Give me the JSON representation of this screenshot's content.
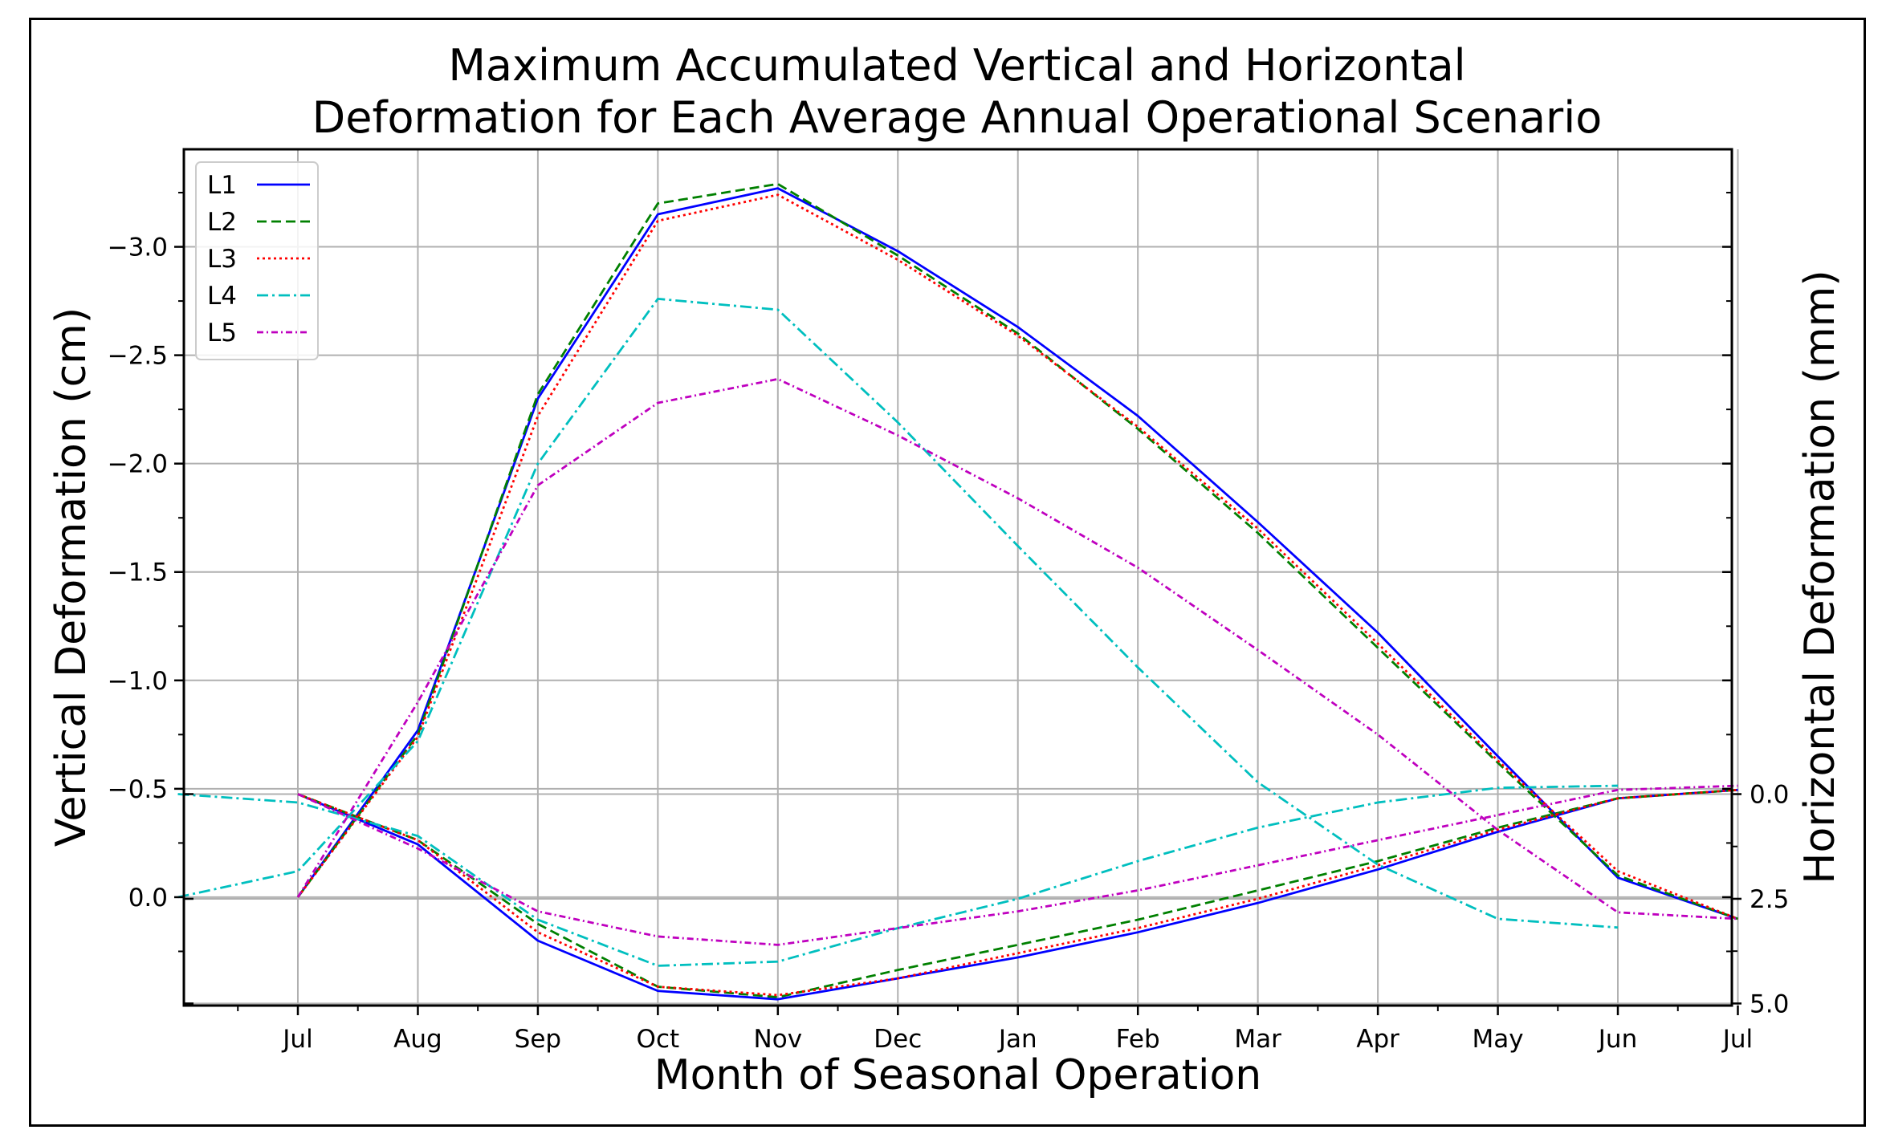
{
  "chart_data": {
    "type": "line",
    "title_lines": [
      "Maximum Accumulated Vertical and Horizontal",
      "Deformation for Each Average Annual Operational Scenario"
    ],
    "xlabel": "Month of Seasonal Operation",
    "ylabel_left": "Vertical Deformation (cm)",
    "ylabel_right": "Horizontal Deformation (mm)",
    "x_ticks": [
      {
        "x": 1,
        "label": "Jul"
      },
      {
        "x": 2,
        "label": "Aug"
      },
      {
        "x": 3,
        "label": "Sep"
      },
      {
        "x": 4,
        "label": "Oct"
      },
      {
        "x": 5,
        "label": "Nov"
      },
      {
        "x": 6,
        "label": "Dec"
      },
      {
        "x": 7,
        "label": "Jan"
      },
      {
        "x": 8,
        "label": "Feb"
      },
      {
        "x": 9,
        "label": "Mar"
      },
      {
        "x": 10,
        "label": "Apr"
      },
      {
        "x": 11,
        "label": "May"
      },
      {
        "x": 12,
        "label": "Jun"
      },
      {
        "x": 13,
        "label": "Jul"
      }
    ],
    "xlim": [
      0.05,
      12.95
    ],
    "vertical_axis": {
      "ylim": [
        0.5,
        -3.45
      ],
      "ticks": [
        {
          "v": -3.0,
          "label": "−3.0"
        },
        {
          "v": -2.5,
          "label": "−2.5"
        },
        {
          "v": -2.0,
          "label": "−2.0"
        },
        {
          "v": -1.5,
          "label": "−1.5"
        },
        {
          "v": -1.0,
          "label": "−1.0"
        },
        {
          "v": -0.5,
          "label": "−0.5"
        },
        {
          "v": 0.0,
          "label": "0.0"
        }
      ]
    },
    "horizontal_axis": {
      "ylim": [
        -15.4,
        5.05
      ],
      "ticks": [
        {
          "v": 0.0,
          "label": "0.0"
        },
        {
          "v": 2.5,
          "label": "2.5"
        },
        {
          "v": 5.0,
          "label": "5.0"
        }
      ]
    },
    "legend_position": "top-left",
    "series": [
      {
        "name": "L1",
        "color": "#0000ff",
        "dash": "",
        "vertical": {
          "x": [
            1,
            2,
            3,
            4,
            5,
            6,
            7,
            8,
            9,
            10,
            11,
            12,
            13
          ],
          "y": [
            0.0,
            -0.77,
            -2.3,
            -3.15,
            -3.27,
            -2.98,
            -2.63,
            -2.22,
            -1.73,
            -1.22,
            -0.65,
            -0.09,
            0.1
          ]
        },
        "horizontal": {
          "x": [
            1,
            2,
            3,
            4,
            5,
            6,
            7,
            8,
            9,
            10,
            11,
            12,
            13
          ],
          "y": [
            0.0,
            1.2,
            3.5,
            4.7,
            4.9,
            4.4,
            3.9,
            3.3,
            2.6,
            1.8,
            0.9,
            0.1,
            -0.1
          ]
        }
      },
      {
        "name": "L2",
        "color": "#008000",
        "dash": "12,6",
        "vertical": {
          "x": [
            1,
            2,
            3,
            4,
            5,
            6,
            7,
            8,
            9,
            10,
            11,
            12,
            13
          ],
          "y": [
            0.0,
            -0.75,
            -2.32,
            -3.2,
            -3.29,
            -2.96,
            -2.6,
            -2.16,
            -1.68,
            -1.15,
            -0.62,
            -0.1,
            0.1
          ]
        },
        "horizontal": {
          "x": [
            1,
            2,
            3,
            4,
            5,
            6,
            7,
            8,
            9,
            10,
            11,
            12,
            13
          ],
          "y": [
            0.0,
            1.1,
            3.1,
            4.6,
            4.85,
            4.2,
            3.6,
            3.0,
            2.3,
            1.6,
            0.8,
            0.1,
            -0.1
          ]
        }
      },
      {
        "name": "L3",
        "color": "#ff0000",
        "dash": "3,4",
        "vertical": {
          "x": [
            1,
            2,
            3,
            4,
            5,
            6,
            7,
            8,
            9,
            10,
            11,
            12,
            13
          ],
          "y": [
            0.0,
            -0.74,
            -2.22,
            -3.12,
            -3.24,
            -2.94,
            -2.59,
            -2.17,
            -1.7,
            -1.17,
            -0.63,
            -0.12,
            0.1
          ]
        },
        "horizontal": {
          "x": [
            1,
            2,
            3,
            4,
            5,
            6,
            7,
            8,
            9,
            10,
            11,
            12,
            13
          ],
          "y": [
            0.0,
            1.1,
            3.3,
            4.6,
            4.8,
            4.4,
            3.8,
            3.2,
            2.5,
            1.7,
            0.85,
            0.1,
            -0.1
          ]
        }
      },
      {
        "name": "L4",
        "color": "#00bfbf",
        "dash": "14,5,3,5",
        "vertical": {
          "x": [
            0,
            1,
            2,
            3,
            4,
            5,
            6,
            7,
            8,
            9,
            10,
            11,
            12
          ],
          "y": [
            0.0,
            -0.12,
            -0.72,
            -2.0,
            -2.76,
            -2.71,
            -2.19,
            -1.62,
            -1.06,
            -0.53,
            -0.15,
            0.1,
            0.14
          ]
        },
        "horizontal": {
          "x": [
            0,
            1,
            2,
            3,
            4,
            5,
            6,
            7,
            8,
            9,
            10,
            11,
            12
          ],
          "y": [
            0.0,
            0.2,
            1.0,
            3.0,
            4.1,
            4.0,
            3.2,
            2.5,
            1.6,
            0.8,
            0.2,
            -0.15,
            -0.2
          ]
        }
      },
      {
        "name": "L5",
        "color": "#bf00bf",
        "dash": "8,4,2,4",
        "vertical": {
          "x": [
            1,
            2,
            3,
            4,
            5,
            6,
            7,
            8,
            9,
            10,
            11,
            12,
            13
          ],
          "y": [
            0.0,
            -0.9,
            -1.9,
            -2.28,
            -2.39,
            -2.13,
            -1.84,
            -1.52,
            -1.14,
            -0.75,
            -0.31,
            0.07,
            0.1
          ]
        },
        "horizontal": {
          "x": [
            1,
            2,
            3,
            4,
            5,
            6,
            7,
            8,
            9,
            10,
            11,
            12,
            13
          ],
          "y": [
            0.0,
            1.3,
            2.8,
            3.4,
            3.6,
            3.2,
            2.8,
            2.3,
            1.7,
            1.1,
            0.5,
            -0.1,
            -0.2
          ]
        }
      }
    ]
  }
}
